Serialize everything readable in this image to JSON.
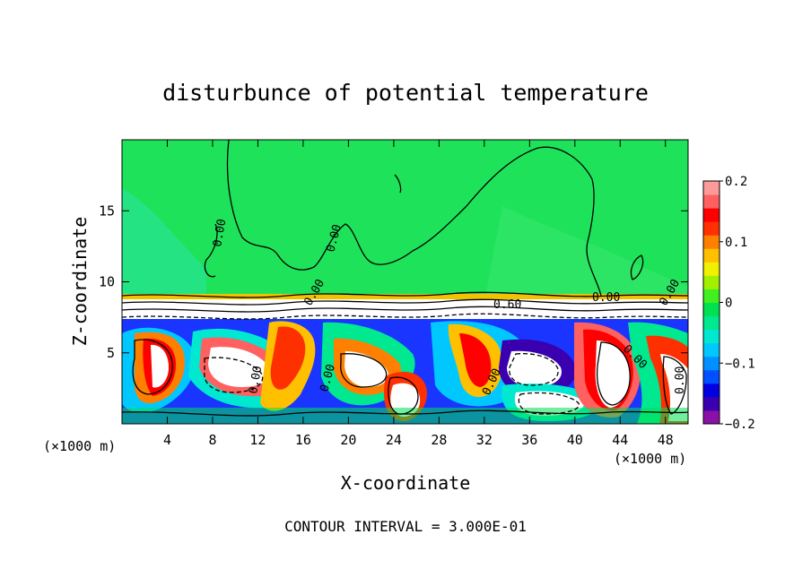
{
  "chart_data": {
    "type": "heatmap",
    "title": "disturbunce of potential temperature",
    "xlabel": "X-coordinate",
    "ylabel": "Z-coordinate",
    "x_unit_label_left": "(×1000 m)",
    "x_unit_label_right": "(×1000 m)",
    "xlim": [
      0,
      50
    ],
    "ylim": [
      0,
      20
    ],
    "xticks": [
      4,
      8,
      12,
      16,
      20,
      24,
      28,
      32,
      36,
      40,
      44,
      48
    ],
    "yticks": [
      5,
      10,
      15
    ],
    "colorbar": {
      "range": [
        -0.2,
        0.2
      ],
      "ticks": [
        {
          "value": 0.2,
          "label": "0.2"
        },
        {
          "value": 0.1,
          "label": "0.1"
        },
        {
          "value": 0.0,
          "label": "0"
        },
        {
          "value": -0.1,
          "label": "−0.1"
        },
        {
          "value": -0.2,
          "label": "−0.2"
        }
      ],
      "colors": [
        "#8b10a8",
        "#3a00b0",
        "#0000e0",
        "#0050ff",
        "#0090ff",
        "#00c8ff",
        "#00e8d0",
        "#00e890",
        "#00e050",
        "#40f020",
        "#a0f000",
        "#f0f000",
        "#ffc000",
        "#ff8000",
        "#ff3000",
        "#ff0000",
        "#ff6060",
        "#ff9a9a"
      ]
    },
    "contour_labels": [
      "0.00",
      "0.00",
      "0.00",
      "0.00",
      "0.60",
      "0.00",
      "0.00",
      "0.00",
      "0.00",
      "0.00",
      "0.00"
    ],
    "footer": "CONTOUR INTERVAL = 3.000E-01"
  }
}
